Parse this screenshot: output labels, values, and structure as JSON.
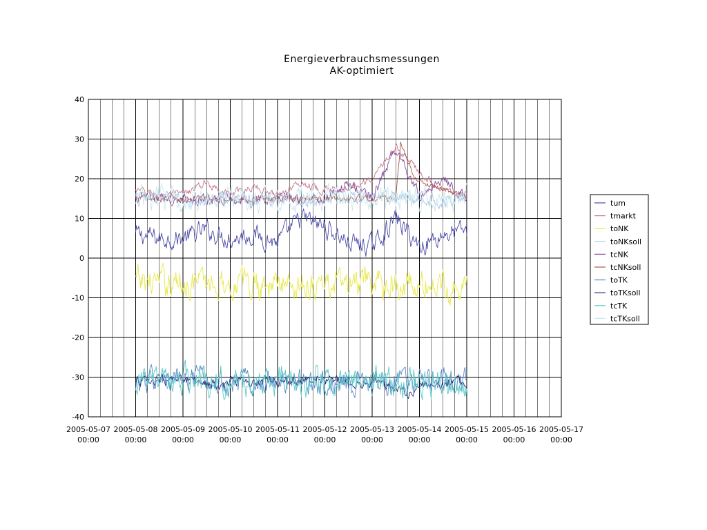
{
  "chart_data": {
    "type": "line",
    "title": "Energieverbrauchsmessungen",
    "subtitle": "AK-optimiert",
    "xlabel": "",
    "ylabel": "",
    "ylim": [
      -40,
      40
    ],
    "yticks": [
      40,
      30,
      20,
      10,
      0,
      -10,
      -20,
      -30,
      -40
    ],
    "xlim": [
      "2005-05-07 00:00",
      "2005-05-17 00:00"
    ],
    "x_ticks": [
      {
        "date": "2005-05-07",
        "time": "00:00"
      },
      {
        "date": "2005-05-08",
        "time": "00:00"
      },
      {
        "date": "2005-05-09",
        "time": "00:00"
      },
      {
        "date": "2005-05-10",
        "time": "00:00"
      },
      {
        "date": "2005-05-11",
        "time": "00:00"
      },
      {
        "date": "2005-05-12",
        "time": "00:00"
      },
      {
        "date": "2005-05-13",
        "time": "00:00"
      },
      {
        "date": "2005-05-14",
        "time": "00:00"
      },
      {
        "date": "2005-05-15",
        "time": "00:00"
      },
      {
        "date": "2005-05-16",
        "time": "00:00"
      },
      {
        "date": "2005-05-17",
        "time": "00:00"
      }
    ],
    "grid": true,
    "minor_vertical_gridlines_per_day": 4,
    "legend_position": "right",
    "data_start_day": 1.0,
    "data_end_day": 8.0,
    "series": [
      {
        "name": "tum",
        "color": "#4a4aa8",
        "days": [
          1.0,
          1.5,
          2.0,
          2.5,
          3.0,
          3.5,
          4.0,
          4.5,
          5.0,
          5.5,
          6.0,
          6.5,
          7.0,
          7.5,
          8.0
        ],
        "values": [
          6,
          5,
          5,
          7,
          5,
          6,
          4,
          10,
          8,
          4,
          3,
          10,
          3,
          6,
          7
        ],
        "noise": 2
      },
      {
        "name": "tmarkt",
        "color": "#c8788e",
        "days": [
          1.0,
          1.5,
          2.0,
          2.5,
          3.0,
          3.5,
          4.0,
          4.5,
          5.0,
          5.5,
          6.0,
          6.5,
          7.0,
          7.5,
          8.0
        ],
        "values": [
          17,
          16,
          16,
          19,
          16,
          18,
          16,
          19,
          17,
          18,
          20,
          28,
          22,
          17,
          16
        ],
        "noise": 0.8
      },
      {
        "name": "toNK",
        "color": "#e8e84a",
        "days": [
          1.0,
          8.0
        ],
        "values": [
          -6,
          -7
        ],
        "noise": 3
      },
      {
        "name": "toNKsoll",
        "color": "#a8c8e8",
        "days": [
          1.0,
          8.0
        ],
        "values": [
          15,
          15
        ],
        "noise": 1.5
      },
      {
        "name": "tcNK",
        "color": "#8a4a9a",
        "days": [
          1.0,
          1.5,
          2.0,
          2.5,
          3.0,
          3.5,
          4.0,
          4.5,
          5.0,
          5.5,
          6.0,
          6.5,
          7.0,
          7.5,
          8.0
        ],
        "values": [
          15,
          15,
          15,
          15,
          15,
          14,
          15,
          15,
          15,
          19,
          15,
          28,
          16,
          20,
          15
        ],
        "noise": 1.2
      },
      {
        "name": "tcNKsoll",
        "color": "#a8584a",
        "days": [
          1.0,
          6.5,
          6.6,
          6.9,
          8.0
        ],
        "values": [
          15,
          15,
          29,
          20,
          15
        ],
        "noise": 0.6
      },
      {
        "name": "toTK",
        "color": "#5a8ac8",
        "days": [
          1.0,
          8.0
        ],
        "values": [
          -31,
          -31
        ],
        "noise": 2.5
      },
      {
        "name": "toTKsoll",
        "color": "#2a2a7a",
        "days": [
          1.0,
          2.5,
          2.8,
          3.0,
          5.0,
          6.0,
          6.8,
          7.0,
          8.0
        ],
        "values": [
          -31,
          -31,
          -33,
          -31,
          -31,
          -31,
          -34,
          -32,
          -31
        ],
        "noise": 1.0
      },
      {
        "name": "tcTK",
        "color": "#5ac8c8",
        "days": [
          1.0,
          8.0
        ],
        "values": [
          -31,
          -31
        ],
        "noise": 3
      },
      {
        "name": "tcTKsoll",
        "color": "#c8e8f0",
        "days": [
          1.0,
          8.0
        ],
        "values": [
          15,
          15
        ],
        "noise": 2.5
      }
    ]
  }
}
